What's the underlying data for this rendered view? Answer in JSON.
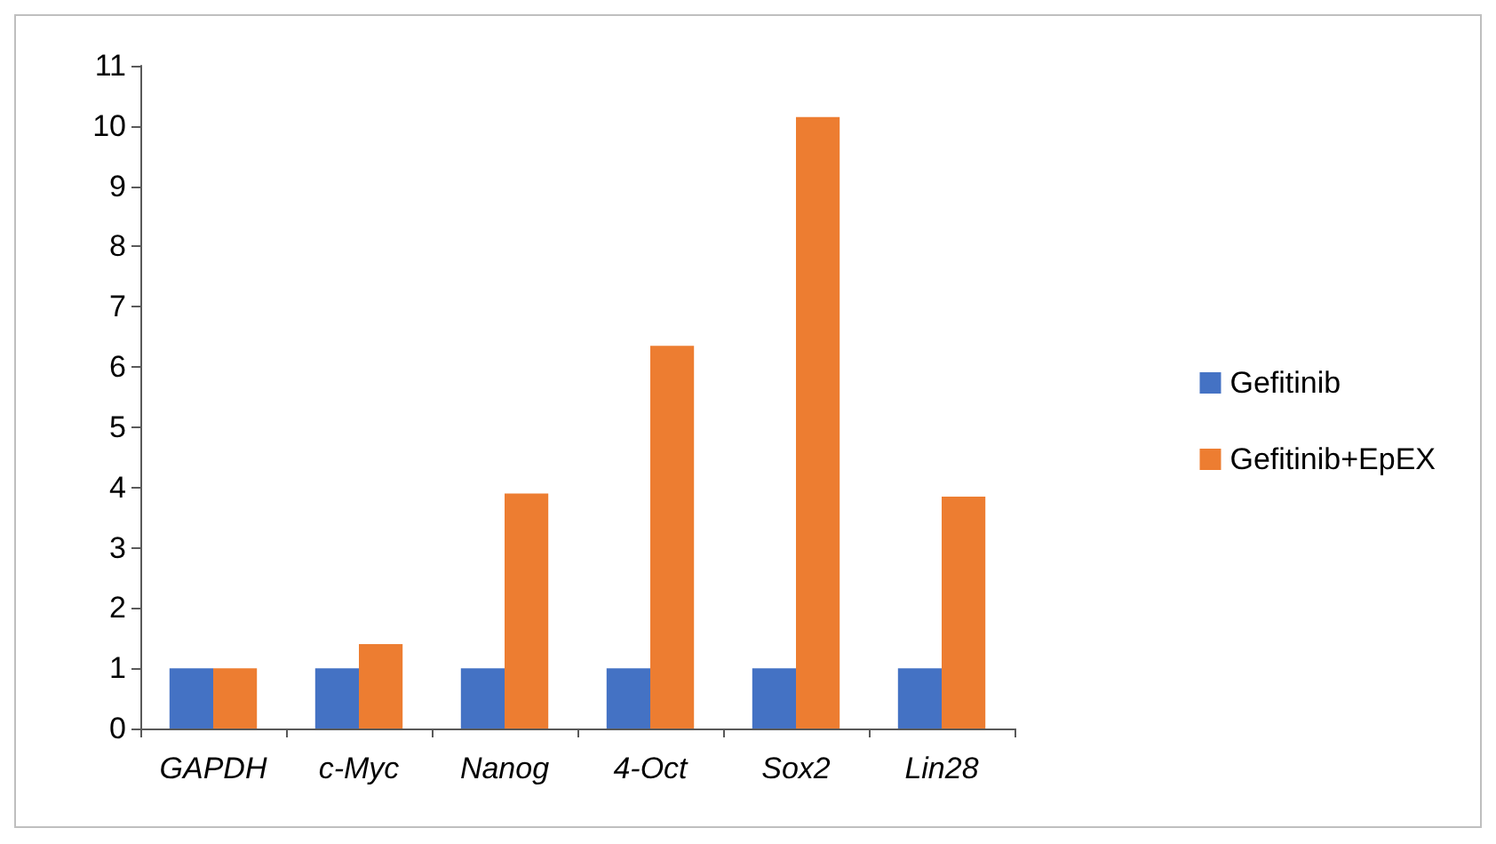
{
  "chart_data": {
    "type": "bar",
    "categories": [
      "GAPDH",
      "c-Myc",
      "Nanog",
      "4-Oct",
      "Sox2",
      "Lin28"
    ],
    "series": [
      {
        "name": "Gefitinib",
        "color": "#4472c4",
        "values": [
          1,
          1,
          1,
          1,
          1,
          1
        ]
      },
      {
        "name": "Gefitinib+EpEX",
        "color": "#ed7d31",
        "values": [
          1,
          1.4,
          3.9,
          6.35,
          10.15,
          3.85
        ]
      }
    ],
    "ylim": [
      0,
      11
    ],
    "yticks": [
      0,
      1,
      2,
      3,
      4,
      5,
      6,
      7,
      8,
      9,
      10,
      11
    ],
    "grid": false,
    "legend": "right"
  }
}
